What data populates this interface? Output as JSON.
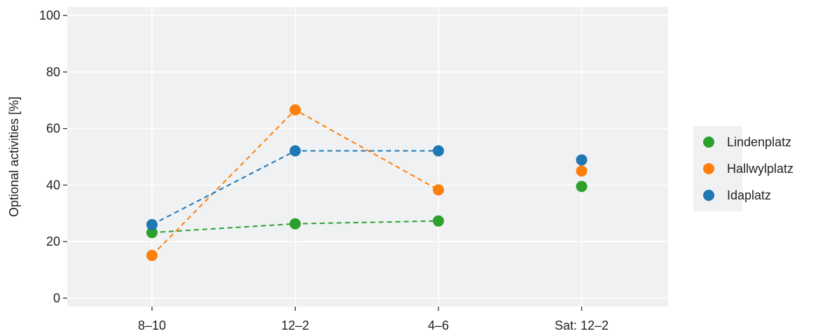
{
  "chart_data": {
    "type": "line",
    "title": "",
    "xlabel": "",
    "ylabel": "Optional activities [%]",
    "categories": [
      "8–10",
      "12–2",
      "4–6",
      "Sat: 12–2"
    ],
    "ylim": [
      -3,
      103
    ],
    "yticks": [
      0,
      20,
      40,
      60,
      80,
      100
    ],
    "grid": true,
    "legend_position": "right",
    "series": [
      {
        "name": "Lindenplatz",
        "color": "#2ca02c",
        "values": [
          23.2,
          26.3,
          27.3,
          39.5
        ]
      },
      {
        "name": "Hallwylplatz",
        "color": "#ff7f0e",
        "values": [
          15.1,
          66.6,
          38.3,
          45.0
        ]
      },
      {
        "name": "Idaplatz",
        "color": "#1f77b4",
        "values": [
          26.0,
          52.1,
          52.1,
          48.9
        ]
      }
    ],
    "connected_points": 3
  }
}
